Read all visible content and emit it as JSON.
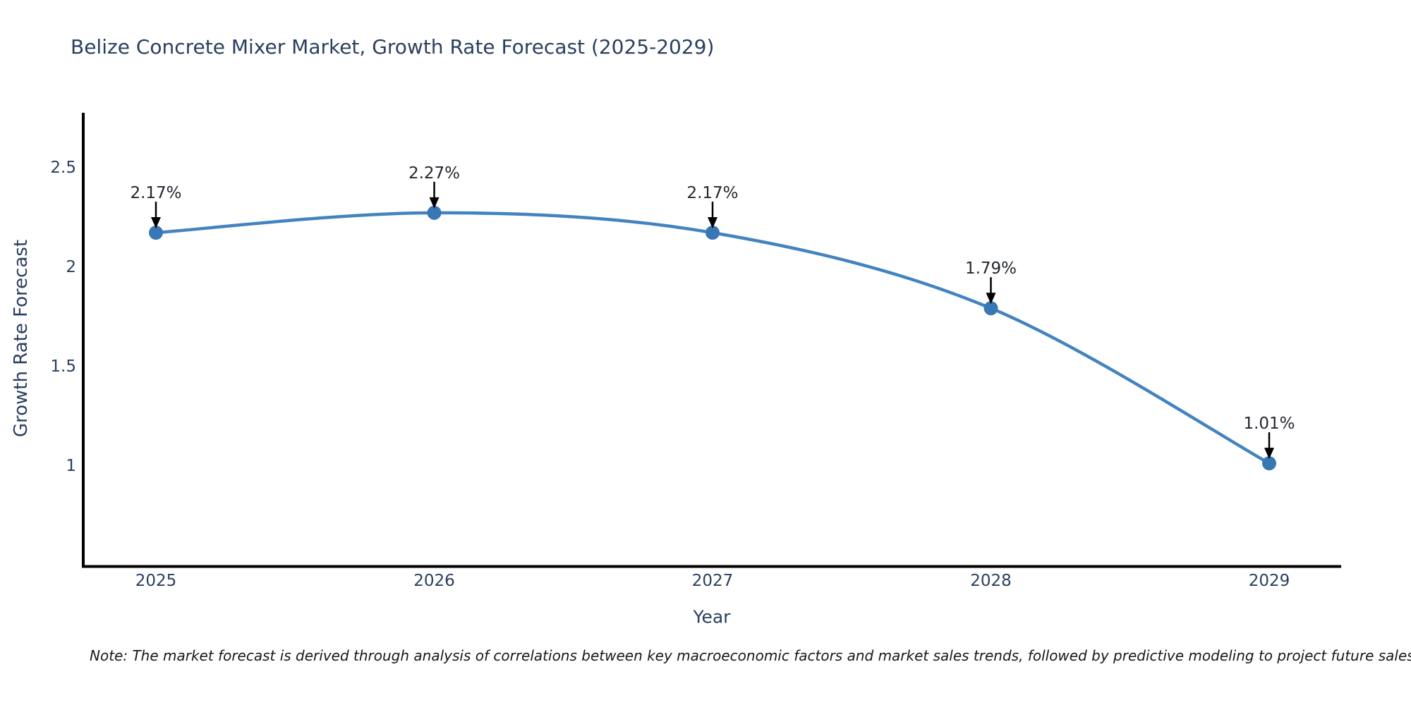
{
  "title": "Belize Concrete Mixer Market, Growth Rate Forecast (2025-2029)",
  "note": {
    "text": "Note: The market forecast is derived through analysis of correlations between key macroeconomic factors and market sales trends, followed by predictive modeling to project future sales"
  },
  "chart_data": {
    "type": "line",
    "title": "Belize Concrete Mixer Market, Growth Rate Forecast (2025-2029)",
    "xlabel": "Year",
    "ylabel": "Growth Rate Forecast",
    "x": [
      "2025",
      "2026",
      "2027",
      "2028",
      "2029"
    ],
    "y": [
      2.17,
      2.27,
      2.17,
      1.79,
      1.01
    ],
    "point_labels": [
      "2.17%",
      "2.27%",
      "2.17%",
      "1.79%",
      "1.01%"
    ],
    "ytick_values": [
      2.5,
      2.0,
      1.5,
      1.0
    ],
    "ytick_labels": [
      "2.5",
      "2",
      "1.5",
      "1"
    ],
    "ylim": [
      0.49,
      2.78
    ],
    "grid": false,
    "legend_position": "none",
    "line_shape": "spline",
    "marker": "circle",
    "annotation_arrows": true,
    "colors": {
      "line": "#4383c0",
      "marker": "#3876b4",
      "axis": "#000000",
      "heading_text": "#2a3f5f",
      "tick_text": "#2a3f5f",
      "annotation_text": "#23272e",
      "arrow": "#000000",
      "background": "#ffffff"
    }
  }
}
